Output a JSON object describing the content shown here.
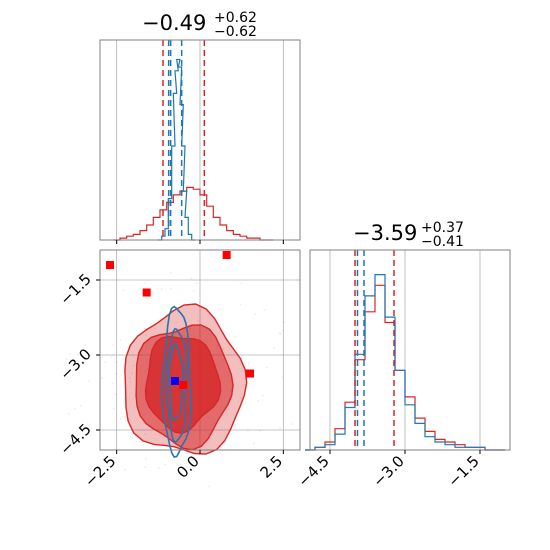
{
  "chart_data": {
    "type": "corner",
    "colors": {
      "red": "#d62728",
      "blue": "#1f77b4",
      "marker_red": "#ff0000",
      "marker_blue": "#0000ff",
      "grid": "#b0b0b0"
    },
    "grid": true,
    "titles": {
      "param1": {
        "main": "−0.49",
        "plus": "+0.62",
        "minus": "−0.62"
      },
      "param2": {
        "main": "−3.59",
        "plus": "+0.37",
        "minus": "−0.41"
      }
    },
    "axes": {
      "p1": {
        "range": [
          -3.0,
          3.0
        ],
        "ticks": [
          -2.5,
          0.0,
          2.5
        ],
        "tick_labels": [
          "−2.5",
          "0.0",
          "2.5"
        ]
      },
      "p2_vertical": {
        "range": [
          -4.9,
          -0.9
        ],
        "ticks": [
          -1.5,
          -3.0,
          -4.5
        ],
        "tick_labels": [
          "−1.5",
          "−3.0",
          "−4.5"
        ]
      },
      "p2_horizontal": {
        "range": [
          -4.9,
          -0.9
        ],
        "ticks": [
          -4.5,
          -3.0,
          -1.5
        ],
        "tick_labels": [
          "−4.5",
          "−3.0",
          "−1.5"
        ]
      }
    },
    "hist_p1": {
      "red_quantiles": [
        -1.11,
        0.13
      ],
      "blue_quantiles": [
        -0.94,
        -0.88,
        -0.55
      ],
      "red_series": {
        "x": [
          -2.5,
          -2.3,
          -2.1,
          -1.9,
          -1.7,
          -1.5,
          -1.3,
          -1.1,
          -0.9,
          -0.7,
          -0.5,
          -0.3,
          -0.1,
          0.1,
          0.3,
          0.5,
          0.7,
          0.9,
          1.1,
          1.3,
          1.5,
          1.7,
          1.9,
          2.1
        ],
        "y": [
          0,
          1,
          2,
          3,
          5,
          8,
          12,
          16,
          20,
          24,
          26,
          28,
          27,
          24,
          18,
          12,
          8,
          5,
          3,
          2,
          1,
          1,
          0,
          0
        ]
      },
      "blue_series": {
        "x": [
          -1.2,
          -1.1,
          -1.0,
          -0.9,
          -0.8,
          -0.75,
          -0.7,
          -0.65,
          -0.6,
          -0.55,
          -0.5,
          -0.45,
          -0.4,
          -0.3,
          -0.2
        ],
        "y": [
          0,
          2,
          6,
          22,
          50,
          78,
          90,
          96,
          92,
          72,
          50,
          26,
          12,
          3,
          0
        ]
      }
    },
    "hist_p2": {
      "red_quantiles": [
        -4.0,
        -3.22
      ],
      "blue_quantiles": [
        -3.95,
        -3.82
      ],
      "red_series": {
        "x": [
          -4.9,
          -4.7,
          -4.5,
          -4.3,
          -4.1,
          -3.9,
          -3.7,
          -3.5,
          -3.3,
          -3.1,
          -2.9,
          -2.7,
          -2.5,
          -2.3,
          -2.1,
          -1.9,
          -1.7,
          -1.5,
          -1.3,
          -1.1
        ],
        "y": [
          0,
          1,
          3,
          8,
          18,
          34,
          52,
          62,
          48,
          30,
          20,
          12,
          7,
          4,
          3,
          2,
          1,
          1,
          0,
          0
        ]
      },
      "blue_series": {
        "x": [
          -4.9,
          -4.7,
          -4.5,
          -4.3,
          -4.1,
          -3.9,
          -3.7,
          -3.5,
          -3.3,
          -3.1,
          -2.9,
          -2.7,
          -2.5,
          -2.3,
          -2.1,
          -1.9,
          -1.7,
          -1.5,
          -1.3,
          -1.1
        ],
        "y": [
          0,
          1,
          2,
          6,
          16,
          36,
          58,
          66,
          50,
          30,
          17,
          10,
          5,
          3,
          2,
          1,
          1,
          1,
          0,
          0
        ]
      }
    },
    "scatter_2d": {
      "red_markers": [
        {
          "x": -2.7,
          "y": -1.2
        },
        {
          "x": -1.6,
          "y": -1.75
        },
        {
          "x": 0.8,
          "y": -1.0
        },
        {
          "x": 1.5,
          "y": -3.37
        },
        {
          "x": -0.5,
          "y": -3.6
        }
      ],
      "blue_markers": [
        {
          "x": -0.75,
          "y": -3.52
        }
      ],
      "red_contours": [
        {
          "cx": -0.48,
          "cy": -3.55,
          "rx": 1.82,
          "ry": 1.45,
          "fill_opacity": 0.3
        },
        {
          "cx": -0.5,
          "cy": -3.6,
          "rx": 1.45,
          "ry": 1.2,
          "fill_opacity": 0.55
        },
        {
          "cx": -0.55,
          "cy": -3.55,
          "rx": 1.1,
          "ry": 0.95,
          "fill_opacity": 0.8
        }
      ],
      "blue_contours": [
        {
          "cx": -0.7,
          "cy": -3.55,
          "rx": 0.42,
          "ry": 1.48
        },
        {
          "cx": -0.7,
          "cy": -3.6,
          "rx": 0.3,
          "ry": 1.12
        },
        {
          "cx": -0.72,
          "cy": -3.55,
          "rx": 0.2,
          "ry": 0.75
        }
      ]
    }
  }
}
